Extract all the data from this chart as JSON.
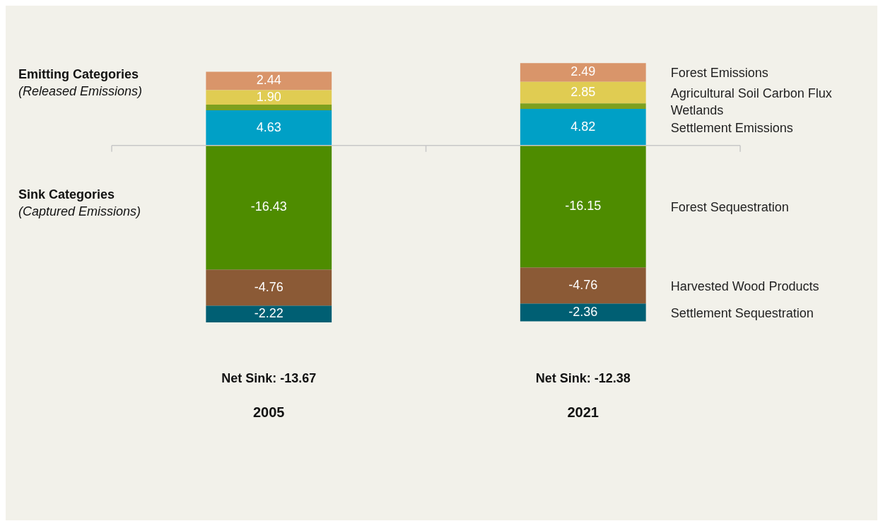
{
  "chart_data": {
    "type": "bar",
    "stacked": true,
    "categories": [
      "2005",
      "2021"
    ],
    "series": [
      {
        "name": "Settlement Emissions",
        "color": "#00a0c6",
        "values": [
          4.63,
          4.82
        ],
        "value_labels": [
          "4.63",
          "4.82"
        ]
      },
      {
        "name": "Wetlands",
        "color": "#7ea01e",
        "values": [
          0.77,
          0.73
        ],
        "value_labels": [
          null,
          null
        ]
      },
      {
        "name": "Agricultural Soil Carbon Flux",
        "color": "#e0cc52",
        "values": [
          1.9,
          2.85
        ],
        "value_labels": [
          "1.90",
          "2.85"
        ]
      },
      {
        "name": "Forest Emissions",
        "color": "#d9956a",
        "values": [
          2.44,
          2.49
        ],
        "value_labels": [
          "2.44",
          "2.49"
        ]
      },
      {
        "name": "Forest Sequestration",
        "color": "#4e8c00",
        "values": [
          -16.43,
          -16.15
        ],
        "value_labels": [
          "-16.43",
          "-16.15"
        ]
      },
      {
        "name": "Harvested Wood Products",
        "color": "#8b5a36",
        "values": [
          -4.76,
          -4.76
        ],
        "value_labels": [
          "-4.76",
          "-4.76"
        ]
      },
      {
        "name": "Settlement Sequestration",
        "color": "#005f73",
        "values": [
          -2.22,
          -2.36
        ],
        "value_labels": [
          "-2.22",
          "-2.36"
        ]
      }
    ],
    "annotations": [
      "Emitting Categories",
      "(Released Emissions)",
      "Sink Categories",
      "(Captured Emissions)",
      "Net Sink: -13.67",
      "Net Sink: -12.38"
    ],
    "ylim": [
      -23.41,
      11
    ],
    "legend": false,
    "grid": false
  }
}
